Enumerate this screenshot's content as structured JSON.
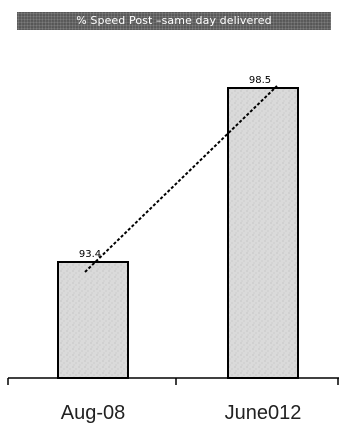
{
  "chart_data": {
    "type": "bar",
    "title": "% Speed Post –same day delivered",
    "xlabel": "",
    "ylabel": "",
    "categories": [
      "Aug-08",
      "June012"
    ],
    "values": [
      93.4,
      98.5
    ],
    "data_labels": [
      "93.4",
      "98.5"
    ],
    "ylim": [
      90,
      100
    ],
    "grid": false,
    "legend": "none",
    "trend_line": "dashed",
    "colors": {
      "bar_fill": "#dadada",
      "bar_stroke": "#000000",
      "title_background": "#5b5b5b",
      "title_text": "#ffffff"
    }
  }
}
